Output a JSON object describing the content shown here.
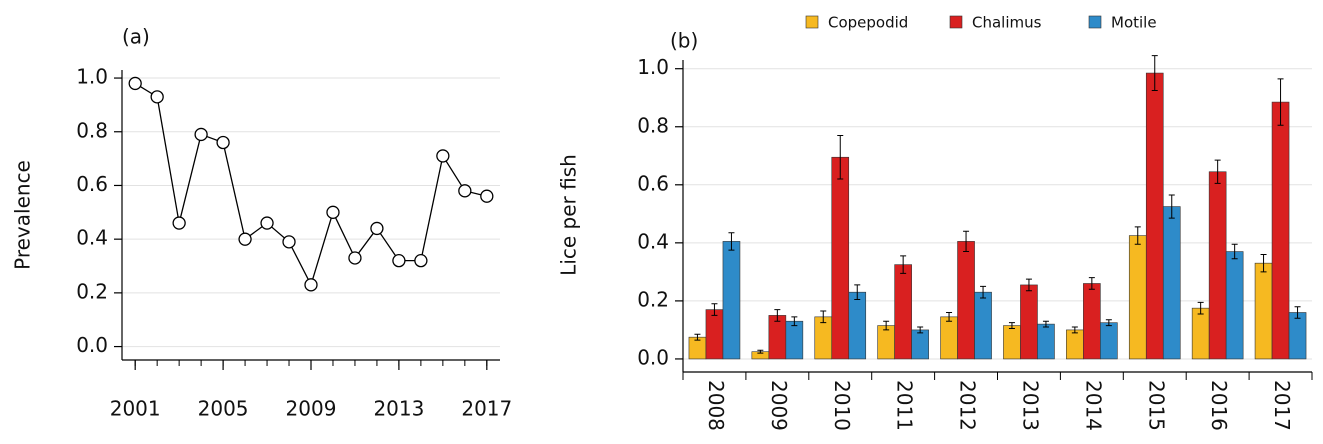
{
  "chart_data": [
    {
      "type": "line",
      "title": "(a)",
      "ylabel": "Prevalence",
      "x": [
        2001,
        2002,
        2003,
        2004,
        2005,
        2006,
        2007,
        2008,
        2009,
        2010,
        2011,
        2012,
        2013,
        2014,
        2015,
        2016,
        2017
      ],
      "series": [
        {
          "name": "Prevalence",
          "color": "#000000",
          "values": [
            0.98,
            0.93,
            0.46,
            0.79,
            0.76,
            0.4,
            0.46,
            0.39,
            0.23,
            0.5,
            0.33,
            0.44,
            0.32,
            0.32,
            0.71,
            0.58,
            0.56
          ]
        }
      ],
      "xlim": [
        2000.4,
        2017.6
      ],
      "xticks": [
        2001,
        2005,
        2009,
        2013,
        2017
      ],
      "ylim": [
        -0.05,
        1.03
      ],
      "yticks": [
        {
          "value": 0,
          "label": "0.0"
        },
        0.2,
        0.4,
        0.6,
        0.8,
        {
          "value": 1,
          "label": "1.0"
        }
      ],
      "grid": true
    },
    {
      "type": "bar",
      "title": "(b)",
      "ylabel": "Lice per fish",
      "categories": [
        "2008",
        "2009",
        "2010",
        "2011",
        "2012",
        "2013",
        "2014",
        "2015",
        "2016",
        "2017"
      ],
      "series": [
        {
          "name": "Copepodid",
          "color": "#f6b921",
          "values": [
            0.075,
            0.025,
            0.145,
            0.115,
            0.145,
            0.115,
            0.1,
            0.425,
            0.175,
            0.33
          ],
          "errors": [
            0.01,
            0.005,
            0.02,
            0.015,
            0.015,
            0.01,
            0.01,
            0.03,
            0.02,
            0.03
          ]
        },
        {
          "name": "Chalimus",
          "color": "#d92020",
          "values": [
            0.17,
            0.15,
            0.695,
            0.325,
            0.405,
            0.255,
            0.26,
            0.985,
            0.645,
            0.885
          ],
          "errors": [
            0.02,
            0.02,
            0.075,
            0.03,
            0.035,
            0.02,
            0.02,
            0.06,
            0.04,
            0.08
          ]
        },
        {
          "name": "Motile",
          "color": "#2e8bc9",
          "values": [
            0.405,
            0.13,
            0.23,
            0.1,
            0.23,
            0.12,
            0.125,
            0.525,
            0.37,
            0.16
          ],
          "errors": [
            0.03,
            0.015,
            0.025,
            0.01,
            0.02,
            0.01,
            0.01,
            0.04,
            0.025,
            0.02
          ]
        }
      ],
      "ylim": [
        -0.045,
        1.03
      ],
      "yticks": [
        {
          "value": 0,
          "label": "0.0"
        },
        0.2,
        0.4,
        0.6,
        0.8,
        {
          "value": 1,
          "label": "1.0"
        }
      ],
      "grid": true,
      "legend": "top"
    }
  ]
}
